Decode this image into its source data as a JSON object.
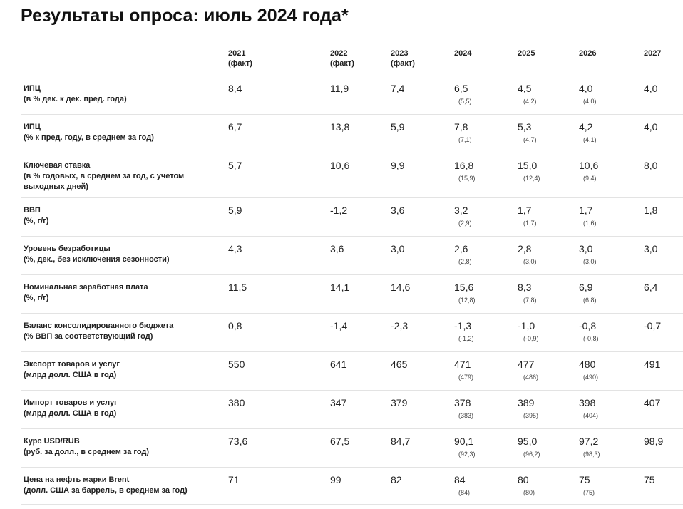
{
  "title": "Результаты опроса: июль 2024 года*",
  "columns": [
    {
      "year": "2021",
      "note": "(факт)"
    },
    {
      "year": "2022",
      "note": "(факт)"
    },
    {
      "year": "2023",
      "note": "(факт)"
    },
    {
      "year": "2024",
      "note": ""
    },
    {
      "year": "2025",
      "note": ""
    },
    {
      "year": "2026",
      "note": ""
    },
    {
      "year": "2027",
      "note": ""
    }
  ],
  "rows": [
    {
      "label": "ИПЦ",
      "sublabel": [
        "(в % дек. к дек. пред. года)"
      ],
      "values": [
        "8,4",
        "11,9",
        "7,4",
        "6,5",
        "4,5",
        "4,0",
        "4,0"
      ],
      "prev": [
        "",
        "",
        "",
        "(5,5)",
        "(4,2)",
        "(4,0)",
        ""
      ]
    },
    {
      "label": "ИПЦ",
      "sublabel": [
        "(% к пред. году, в среднем за год)"
      ],
      "values": [
        "6,7",
        "13,8",
        "5,9",
        "7,8",
        "5,3",
        "4,2",
        "4,0"
      ],
      "prev": [
        "",
        "",
        "",
        "(7,1)",
        "(4,7)",
        "(4,1)",
        ""
      ]
    },
    {
      "label": "Ключевая ставка",
      "sublabel": [
        "(в % годовых, в среднем за год, с учетом",
        "выходных дней)"
      ],
      "values": [
        "5,7",
        "10,6",
        "9,9",
        "16,8",
        "15,0",
        "10,6",
        "8,0"
      ],
      "prev": [
        "",
        "",
        "",
        "(15,9)",
        "(12,4)",
        "(9,4)",
        ""
      ]
    },
    {
      "label": "ВВП",
      "sublabel": [
        "(%, г/г)"
      ],
      "values": [
        "5,9",
        "-1,2",
        "3,6",
        "3,2",
        "1,7",
        "1,7",
        "1,8"
      ],
      "prev": [
        "",
        "",
        "",
        "(2,9)",
        "(1,7)",
        "(1,6)",
        ""
      ]
    },
    {
      "label": "Уровень безработицы",
      "sublabel": [
        "(%, дек., без исключения сезонности)"
      ],
      "values": [
        "4,3",
        "3,6",
        "3,0",
        "2,6",
        "2,8",
        "3,0",
        "3,0"
      ],
      "prev": [
        "",
        "",
        "",
        "(2,8)",
        "(3,0)",
        "(3,0)",
        ""
      ]
    },
    {
      "label": "Номинальная заработная плата",
      "sublabel": [
        "(%, г/г)"
      ],
      "values": [
        "11,5",
        "14,1",
        "14,6",
        "15,6",
        "8,3",
        "6,9",
        "6,4"
      ],
      "prev": [
        "",
        "",
        "",
        "(12,8)",
        "(7,8)",
        "(6,8)",
        ""
      ]
    },
    {
      "label": "Баланс консолидированного бюджета",
      "sublabel": [
        "(% ВВП за соответствующий год)"
      ],
      "values": [
        "0,8",
        "-1,4",
        "-2,3",
        "-1,3",
        "-1,0",
        "-0,8",
        "-0,7"
      ],
      "prev": [
        "",
        "",
        "",
        "(-1,2)",
        "(-0,9)",
        "(-0,8)",
        ""
      ]
    },
    {
      "label": "Экспорт товаров и услуг",
      "sublabel": [
        "(млрд долл. США в год)"
      ],
      "values": [
        "550",
        "641",
        "465",
        "471",
        "477",
        "480",
        "491"
      ],
      "prev": [
        "",
        "",
        "",
        "(479)",
        "(486)",
        "(490)",
        ""
      ]
    },
    {
      "label": "Импорт товаров и услуг",
      "sublabel": [
        "(млрд долл. США в год)"
      ],
      "values": [
        "380",
        "347",
        "379",
        "378",
        "389",
        "398",
        "407"
      ],
      "prev": [
        "",
        "",
        "",
        "(383)",
        "(395)",
        "(404)",
        ""
      ]
    },
    {
      "label": "Курс USD/RUB",
      "sublabel": [
        "(руб. за долл., в среднем за год)"
      ],
      "values": [
        "73,6",
        "67,5",
        "84,7",
        "90,1",
        "95,0",
        "97,2",
        "98,9"
      ],
      "prev": [
        "",
        "",
        "",
        "(92,3)",
        "(96,2)",
        "(98,3)",
        ""
      ]
    },
    {
      "label": "Цена на нефть марки Brent",
      "sublabel": [
        "(долл. США за баррель, в среднем за год)"
      ],
      "values": [
        "71",
        "99",
        "82",
        "84",
        "80",
        "75",
        "75"
      ],
      "prev": [
        "",
        "",
        "",
        "(84)",
        "(80)",
        "(75)",
        ""
      ]
    }
  ]
}
